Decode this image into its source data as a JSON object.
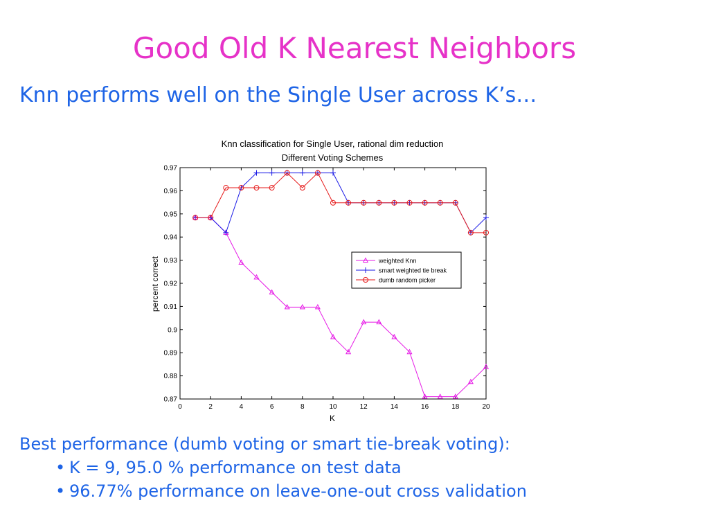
{
  "slide": {
    "title": "Good Old K Nearest Neighbors",
    "subtitle": "Knn performs well on the Single User across K’s…",
    "performance_heading": "Best performance (dumb voting or smart tie-break voting):",
    "bullets": [
      "K = 9, 95.0 % performance on test data",
      "96.77% performance on leave-one-out cross validation"
    ],
    "bullet_char": "•",
    "colors": {
      "title": "#e632c8",
      "text": "#1e64e6"
    }
  },
  "chart_data": {
    "type": "line",
    "title": "Knn classification for Single User, rational dim reduction",
    "subtitle": "Different Voting Schemes",
    "xlabel": "K",
    "ylabel": "percent correct",
    "xlim": [
      0,
      20
    ],
    "ylim": [
      0.87,
      0.97
    ],
    "xticks": [
      0,
      2,
      4,
      6,
      8,
      10,
      12,
      14,
      16,
      18,
      20
    ],
    "yticks": [
      0.87,
      0.88,
      0.89,
      0.9,
      0.91,
      0.92,
      0.93,
      0.94,
      0.95,
      0.96,
      0.97
    ],
    "ytick_labels": [
      "0.87",
      "0.88",
      "0.89",
      "0.9",
      "0.91",
      "0.92",
      "0.93",
      "0.94",
      "0.95",
      "0.96",
      "0.97"
    ],
    "grid": false,
    "legend_position": "right",
    "x": [
      1,
      2,
      3,
      4,
      5,
      6,
      7,
      8,
      9,
      10,
      11,
      12,
      13,
      14,
      15,
      16,
      17,
      18,
      19,
      20
    ],
    "series": [
      {
        "name": "weighted Knn",
        "color": "#e61ae6",
        "marker": "triangle",
        "values": [
          0.9484,
          0.9484,
          0.9419,
          0.929,
          0.9226,
          0.9161,
          0.9097,
          0.9097,
          0.9097,
          0.8968,
          0.8903,
          0.9032,
          0.9032,
          0.8968,
          0.8903,
          0.871,
          0.871,
          0.871,
          0.8774,
          0.8839
        ]
      },
      {
        "name": "smart weighted tie break",
        "color": "#1a1ae6",
        "marker": "plus",
        "values": [
          0.9484,
          0.9484,
          0.9419,
          0.9613,
          0.9677,
          0.9677,
          0.9677,
          0.9677,
          0.9677,
          0.9677,
          0.9548,
          0.9548,
          0.9548,
          0.9548,
          0.9548,
          0.9548,
          0.9548,
          0.9548,
          0.9419,
          0.9484
        ]
      },
      {
        "name": "dumb random picker",
        "color": "#e61a1a",
        "marker": "circle",
        "values": [
          0.9484,
          0.9484,
          0.9613,
          0.9613,
          0.9613,
          0.9613,
          0.9677,
          0.9613,
          0.9677,
          0.9548,
          0.9548,
          0.9548,
          0.9548,
          0.9548,
          0.9548,
          0.9548,
          0.9548,
          0.9548,
          0.9419,
          0.9419
        ]
      }
    ]
  }
}
